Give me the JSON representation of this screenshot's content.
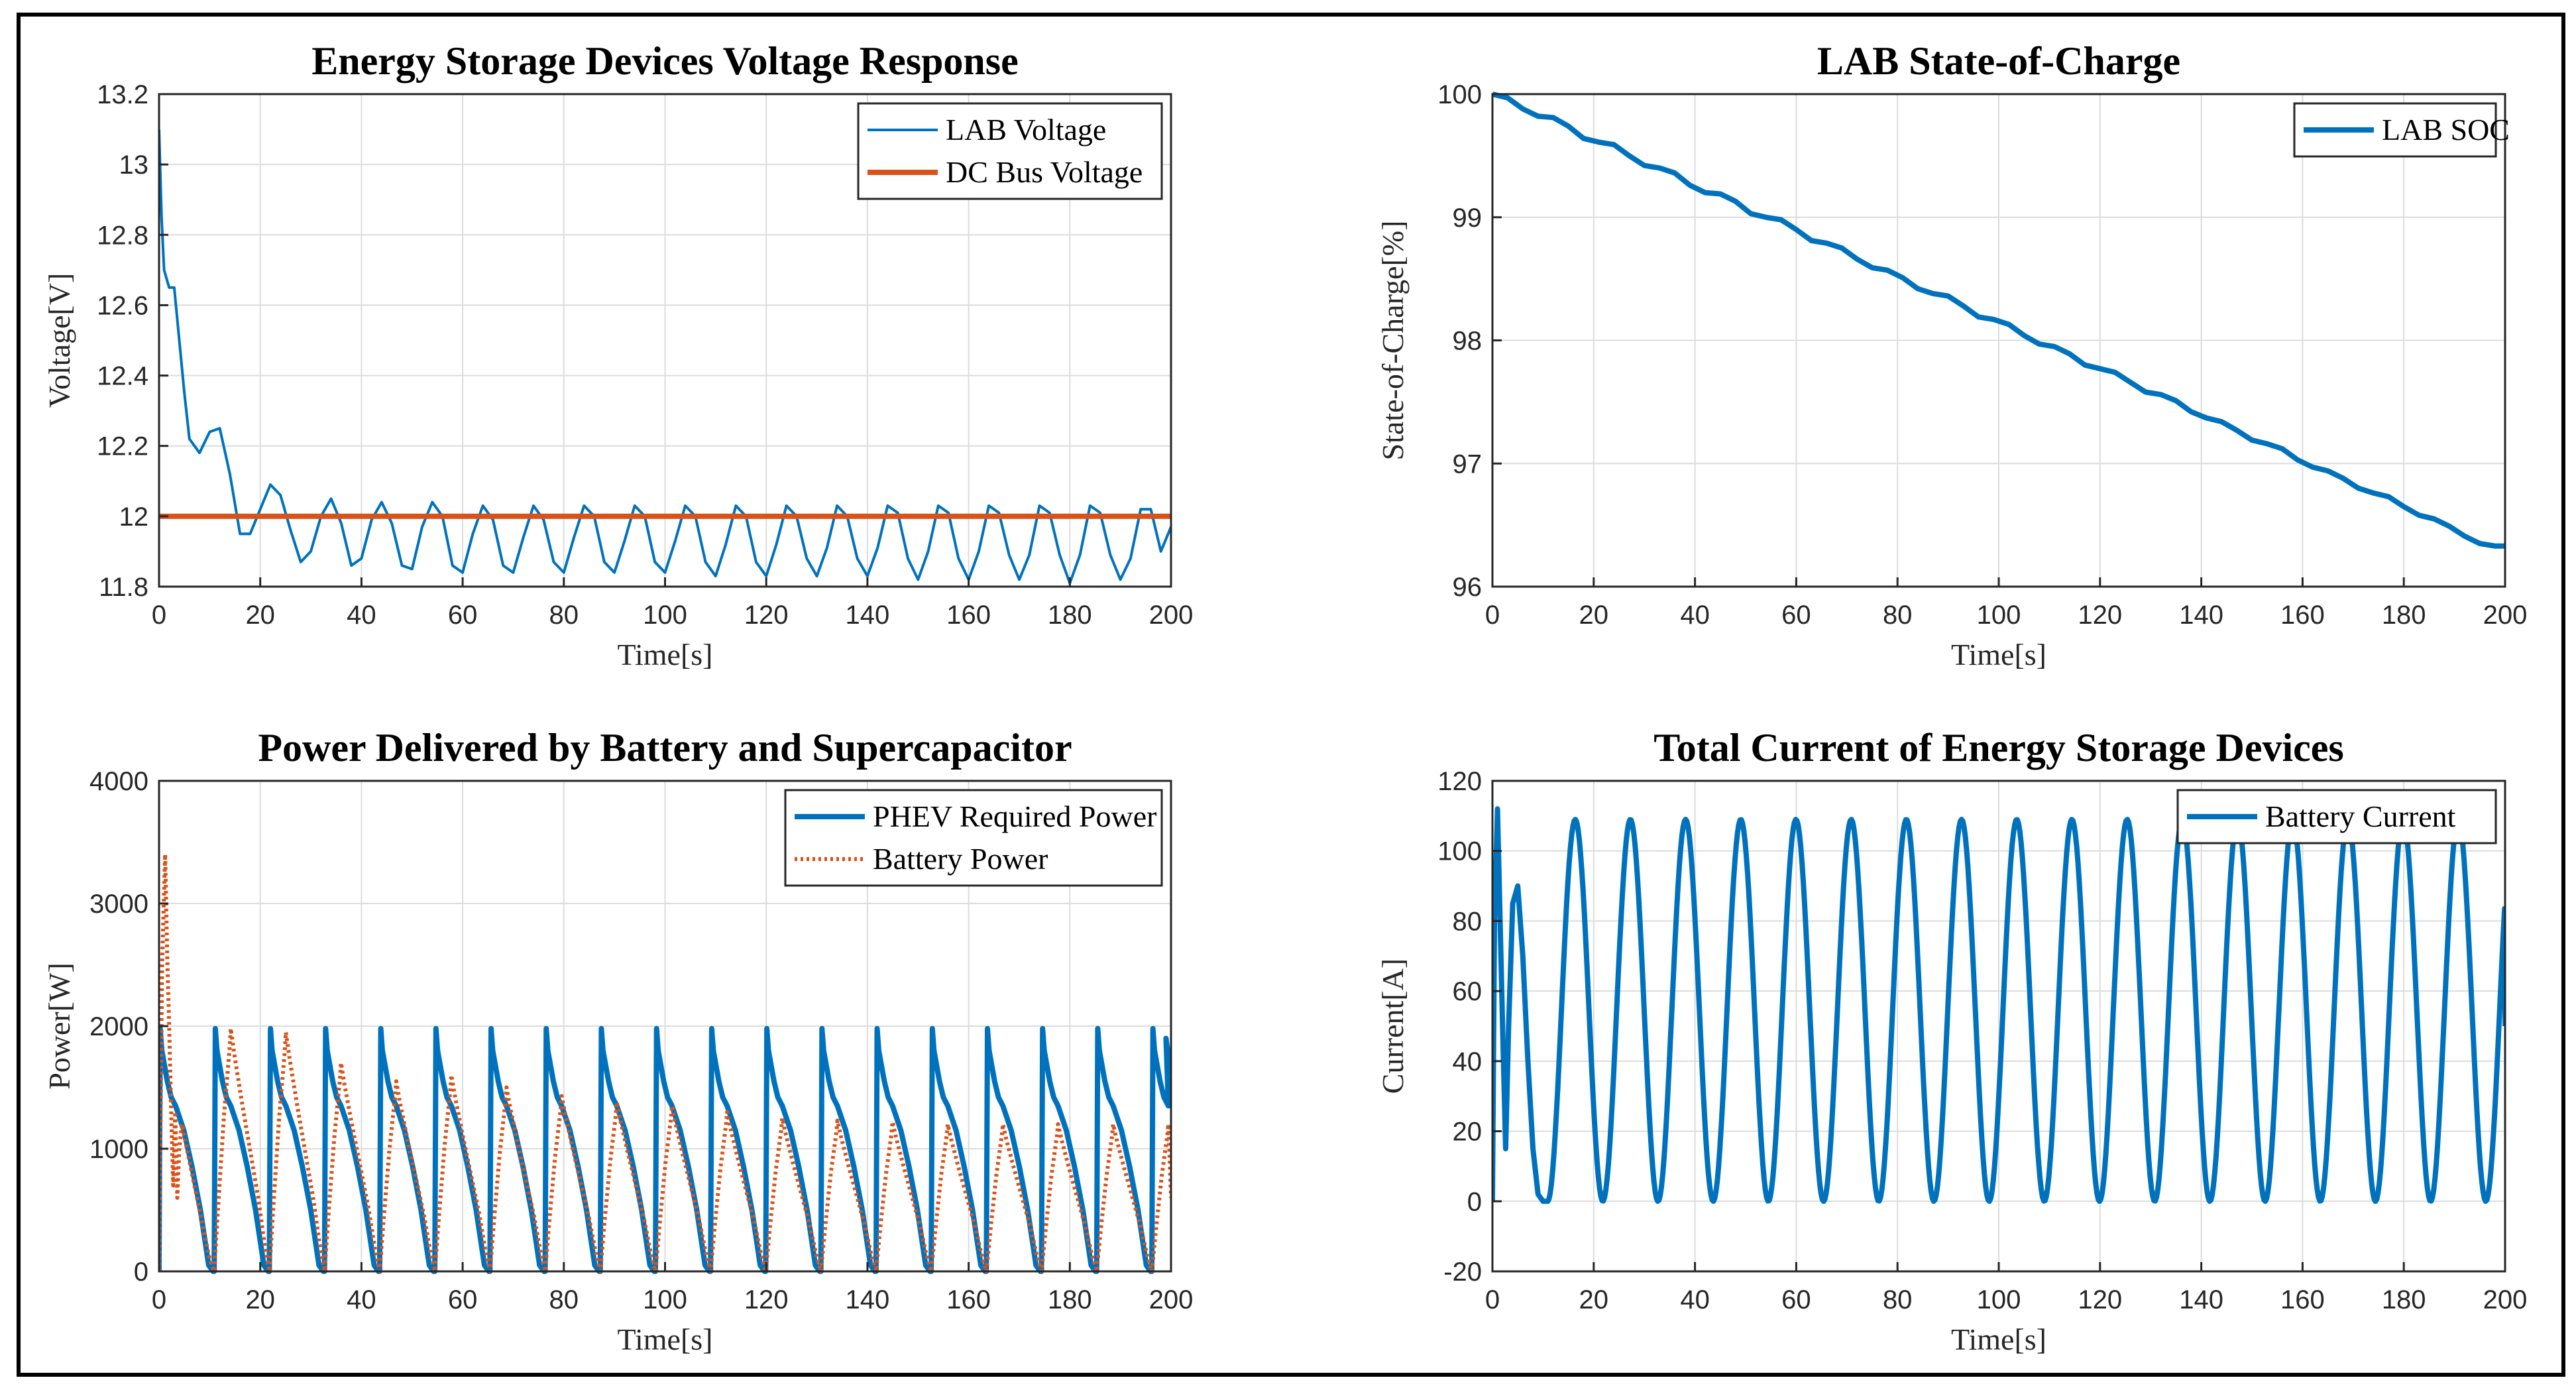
{
  "colors": {
    "blue": "#0072BD",
    "orange": "#D95319",
    "grid": "#dcdcdc",
    "axis": "#262626"
  },
  "chart_data": [
    {
      "type": "line",
      "title": "Energy Storage Devices Voltage Response",
      "xlabel": "Time[s]",
      "ylabel": "Voltage[V]",
      "xlim": [
        0,
        200
      ],
      "ylim": [
        11.8,
        13.2
      ],
      "xticks": [
        0,
        20,
        40,
        60,
        80,
        100,
        120,
        140,
        160,
        180,
        200
      ],
      "yticks": [
        "11.8",
        "12",
        "12.2",
        "12.4",
        "12.6",
        "12.8",
        "13",
        "13.2"
      ],
      "grid": true,
      "legend_position": "top-right",
      "series": [
        {
          "name": "LAB Voltage",
          "style": "solid-thin",
          "color": "#0072BD",
          "x": [
            0,
            0.5,
            1,
            2,
            3,
            5,
            6,
            8,
            10,
            12,
            14,
            16,
            18,
            20,
            22,
            24,
            26,
            28,
            30,
            32,
            34,
            36,
            38,
            40,
            42,
            44,
            46,
            48,
            50,
            52,
            54,
            56,
            58,
            60,
            62,
            64,
            66,
            68,
            70,
            72,
            74,
            76,
            78,
            80,
            82,
            84,
            86,
            88,
            90,
            92,
            94,
            96,
            98,
            100,
            102,
            104,
            106,
            108,
            110,
            112,
            114,
            116,
            118,
            120,
            122,
            124,
            126,
            128,
            130,
            132,
            134,
            136,
            138,
            140,
            142,
            144,
            146,
            148,
            150,
            152,
            154,
            156,
            158,
            160,
            162,
            164,
            166,
            168,
            170,
            172,
            174,
            176,
            178,
            180,
            182,
            184,
            186,
            188,
            190,
            192,
            194,
            196,
            198,
            200
          ],
          "y": [
            13.1,
            12.85,
            12.7,
            12.65,
            12.65,
            12.35,
            12.22,
            12.18,
            12.24,
            12.25,
            12.12,
            11.95,
            11.95,
            12.02,
            12.09,
            12.06,
            11.96,
            11.87,
            11.9,
            12.0,
            12.05,
            11.98,
            11.86,
            11.88,
            11.99,
            12.04,
            11.98,
            11.86,
            11.85,
            11.97,
            12.04,
            12.0,
            11.86,
            11.84,
            11.95,
            12.03,
            11.99,
            11.86,
            11.84,
            11.94,
            12.03,
            11.99,
            11.87,
            11.84,
            11.94,
            12.03,
            12.0,
            11.87,
            11.84,
            11.93,
            12.03,
            12.0,
            11.87,
            11.84,
            11.93,
            12.03,
            12.0,
            11.87,
            11.83,
            11.92,
            12.03,
            12.0,
            11.87,
            11.83,
            11.92,
            12.03,
            12.0,
            11.88,
            11.83,
            11.91,
            12.03,
            12.0,
            11.88,
            11.83,
            11.91,
            12.03,
            12.01,
            11.88,
            11.82,
            11.9,
            12.03,
            12.01,
            11.88,
            11.82,
            11.9,
            12.03,
            12.01,
            11.89,
            11.82,
            11.89,
            12.03,
            12.01,
            11.89,
            11.81,
            11.89,
            12.03,
            12.01,
            11.89,
            11.82,
            11.88,
            12.02,
            12.02,
            11.9,
            11.97
          ]
        },
        {
          "name": "DC Bus Voltage",
          "style": "solid-thick",
          "color": "#D95319",
          "x": [
            0,
            200
          ],
          "y": [
            12,
            12
          ]
        }
      ]
    },
    {
      "type": "line",
      "title": "LAB State-of-Charge",
      "xlabel": "Time[s]",
      "ylabel": "State-of-Charge[%]",
      "xlim": [
        0,
        200
      ],
      "ylim": [
        96,
        100
      ],
      "xticks": [
        0,
        20,
        40,
        60,
        80,
        100,
        120,
        140,
        160,
        180,
        200
      ],
      "yticks": [
        "96",
        "97",
        "98",
        "99",
        "100"
      ],
      "grid": true,
      "legend_position": "top-right",
      "series": [
        {
          "name": "LAB SOC",
          "style": "solid-thick",
          "color": "#0072BD",
          "x": [
            0,
            3,
            6,
            9,
            12,
            15,
            18,
            21,
            24,
            27,
            30,
            33,
            36,
            39,
            42,
            45,
            48,
            51,
            54,
            57,
            60,
            63,
            66,
            69,
            72,
            75,
            78,
            81,
            84,
            87,
            90,
            93,
            96,
            99,
            102,
            105,
            108,
            111,
            114,
            117,
            120,
            123,
            126,
            129,
            132,
            135,
            138,
            141,
            144,
            147,
            150,
            153,
            156,
            159,
            162,
            165,
            168,
            171,
            174,
            177,
            180,
            183,
            186,
            189,
            192,
            195,
            198,
            200
          ],
          "y": [
            100,
            99.97,
            99.88,
            99.82,
            99.81,
            99.74,
            99.64,
            99.61,
            99.59,
            99.5,
            99.42,
            99.4,
            99.36,
            99.26,
            99.2,
            99.19,
            99.13,
            99.03,
            99.0,
            98.98,
            98.9,
            98.81,
            98.79,
            98.75,
            98.66,
            98.59,
            98.57,
            98.51,
            98.42,
            98.38,
            98.36,
            98.28,
            98.19,
            98.17,
            98.13,
            98.04,
            97.97,
            97.95,
            97.89,
            97.8,
            97.77,
            97.74,
            97.66,
            97.58,
            97.56,
            97.51,
            97.42,
            97.37,
            97.34,
            97.27,
            97.19,
            97.16,
            97.12,
            97.03,
            96.97,
            96.94,
            96.88,
            96.8,
            96.76,
            96.73,
            96.65,
            96.58,
            96.55,
            96.49,
            96.41,
            96.35,
            96.33,
            96.33
          ]
        }
      ]
    },
    {
      "type": "line",
      "title": "Power Delivered by Battery and Supercapacitor",
      "xlabel": "Time[s]",
      "ylabel": "Power[W]",
      "xlim": [
        0,
        200
      ],
      "ylim": [
        0,
        4000
      ],
      "xticks": [
        0,
        20,
        40,
        60,
        80,
        100,
        120,
        140,
        160,
        180,
        200
      ],
      "yticks": [
        "0",
        "1000",
        "2000",
        "3000",
        "4000"
      ],
      "grid": true,
      "legend_position": "top-right",
      "period": 10.9,
      "series": [
        {
          "name": "PHEV Required Power",
          "style": "solid-thick",
          "color": "#0072BD",
          "cycle_shape": {
            "phase": [
              0,
              0.02,
              0.05,
              0.15,
              0.22,
              0.3,
              0.45,
              0.6,
              0.75,
              0.85,
              0.9,
              0.98,
              1.0
            ],
            "value": [
              0,
              1980,
              1800,
              1550,
              1420,
              1350,
              1150,
              850,
              500,
              200,
              50,
              0,
              0
            ]
          },
          "cycles": 19,
          "start_value": 0,
          "end_value": 1600
        },
        {
          "name": "Battery Power",
          "style": "dotted",
          "color": "#D95319",
          "transient": {
            "x": [
              0,
              0.6,
              1.2,
              1.6,
              2.0,
              2.4,
              2.8,
              3.2,
              3.6,
              4.0,
              4.5,
              5.0,
              6.0,
              7.0,
              8.0,
              9.0,
              10.0,
              10.9
            ],
            "y": [
              0,
              2500,
              3400,
              2600,
              2000,
              1300,
              700,
              1300,
              600,
              1000,
              1200,
              1100,
              900,
              700,
              500,
              300,
              100,
              0
            ]
          },
          "cycle_peaks": [
            1980,
            1950,
            1700,
            1550,
            1600,
            1500,
            1430,
            1380,
            1350,
            1300,
            1250,
            1230,
            1220,
            1200,
            1200,
            1200,
            1200,
            1200
          ]
        }
      ]
    },
    {
      "type": "line",
      "title": "Total Current of Energy Storage Devices",
      "xlabel": "Time[s]",
      "ylabel": "Current[A]",
      "xlim": [
        0,
        200
      ],
      "ylim": [
        -20,
        120
      ],
      "xticks": [
        0,
        20,
        40,
        60,
        80,
        100,
        120,
        140,
        160,
        180,
        200
      ],
      "yticks": [
        "-20",
        "0",
        "20",
        "40",
        "60",
        "80",
        "100",
        "120"
      ],
      "grid": true,
      "legend_position": "top-right",
      "period": 10.9,
      "series": [
        {
          "name": "Battery Current",
          "style": "solid-thick",
          "color": "#0072BD",
          "transient": {
            "x": [
              0,
              0.4,
              1.0,
              2.0,
              2.6,
              3.2,
              4.0,
              5.0,
              6.0,
              7.0,
              8.0,
              9.0,
              10.0,
              10.9
            ],
            "y": [
              0,
              80,
              112,
              50,
              15,
              50,
              85,
              90,
              70,
              40,
              15,
              2,
              0,
              0
            ]
          },
          "cycle_peak": 109,
          "cycle_min": 0,
          "end_value": 50
        }
      ]
    }
  ]
}
